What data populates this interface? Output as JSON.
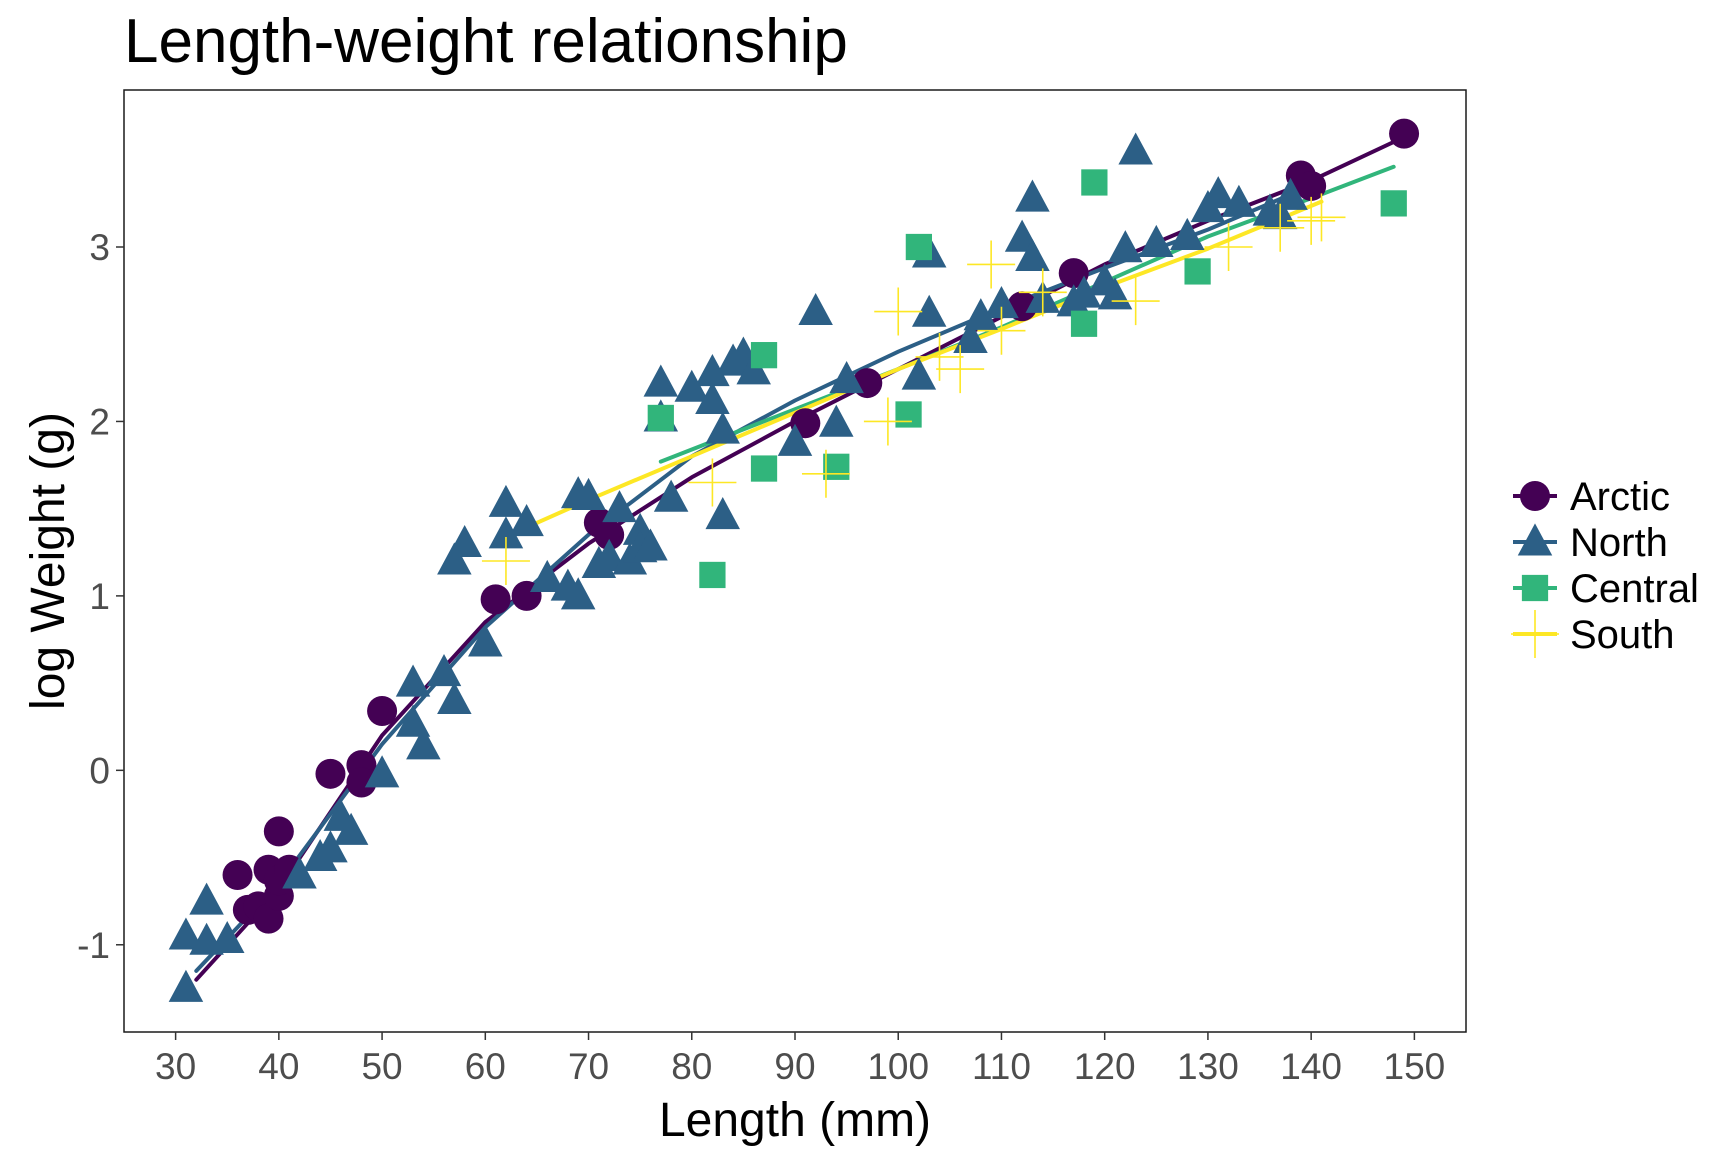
{
  "chart_data": {
    "type": "scatter",
    "title": "Length-weight relationship",
    "xlabel": "Length (mm)",
    "ylabel": "log Weight (g)",
    "xlim": [
      25,
      155
    ],
    "ylim": [
      -1.5,
      3.9
    ],
    "xticks": [
      30,
      40,
      50,
      60,
      70,
      80,
      90,
      100,
      110,
      120,
      130,
      140,
      150
    ],
    "yticks": [
      -1,
      0,
      1,
      2,
      3
    ],
    "xtick_labels": [
      "30",
      "40",
      "50",
      "60",
      "70",
      "80",
      "90",
      "100",
      "110",
      "120",
      "130",
      "140",
      "150"
    ],
    "ytick_labels": [
      "-1",
      "0",
      "1",
      "2",
      "3"
    ],
    "grid": false,
    "legend_position": "right",
    "series": [
      {
        "name": "Arctic",
        "marker": "circle",
        "color": "#440154",
        "points": [
          [
            36,
            -0.6
          ],
          [
            37,
            -0.8
          ],
          [
            38,
            -0.78
          ],
          [
            39,
            -0.57
          ],
          [
            39,
            -0.85
          ],
          [
            40,
            -0.35
          ],
          [
            40,
            -0.72
          ],
          [
            40,
            -0.63
          ],
          [
            41,
            -0.57
          ],
          [
            45,
            -0.02
          ],
          [
            48,
            0.03
          ],
          [
            48,
            -0.07
          ],
          [
            50,
            0.34
          ],
          [
            61,
            0.98
          ],
          [
            64,
            1.0
          ],
          [
            71,
            1.42
          ],
          [
            72,
            1.35
          ],
          [
            91,
            1.99
          ],
          [
            97,
            2.22
          ],
          [
            112,
            2.66
          ],
          [
            117,
            2.85
          ],
          [
            139,
            3.41
          ],
          [
            140,
            3.35
          ],
          [
            149,
            3.65
          ]
        ],
        "trend": [
          [
            32,
            -1.2
          ],
          [
            40,
            -0.68
          ],
          [
            50,
            0.2
          ],
          [
            60,
            0.85
          ],
          [
            70,
            1.3
          ],
          [
            80,
            1.68
          ],
          [
            90,
            2.0
          ],
          [
            100,
            2.3
          ],
          [
            110,
            2.6
          ],
          [
            120,
            2.9
          ],
          [
            130,
            3.15
          ],
          [
            140,
            3.38
          ],
          [
            149,
            3.63
          ]
        ]
      },
      {
        "name": "North",
        "marker": "triangle",
        "color": "#2c5f86",
        "points": [
          [
            31,
            -0.95
          ],
          [
            31,
            -1.25
          ],
          [
            33,
            -0.75
          ],
          [
            33,
            -0.98
          ],
          [
            35,
            -0.97
          ],
          [
            42,
            -0.6
          ],
          [
            44,
            -0.5
          ],
          [
            45,
            -0.45
          ],
          [
            46,
            -0.27
          ],
          [
            47,
            -0.35
          ],
          [
            50,
            -0.02
          ],
          [
            53,
            0.5
          ],
          [
            53,
            0.27
          ],
          [
            54,
            0.14
          ],
          [
            56,
            0.56
          ],
          [
            57,
            0.4
          ],
          [
            57,
            1.2
          ],
          [
            58,
            1.3
          ],
          [
            60,
            0.73
          ],
          [
            62,
            1.35
          ],
          [
            62,
            1.53
          ],
          [
            64,
            1.42
          ],
          [
            66,
            1.1
          ],
          [
            68,
            1.05
          ],
          [
            69,
            1.0
          ],
          [
            69,
            1.58
          ],
          [
            70,
            1.57
          ],
          [
            71,
            1.18
          ],
          [
            72,
            1.22
          ],
          [
            73,
            1.5
          ],
          [
            74,
            1.2
          ],
          [
            75,
            1.37
          ],
          [
            75,
            1.27
          ],
          [
            76,
            1.28
          ],
          [
            77,
            2.02
          ],
          [
            77,
            2.22
          ],
          [
            78,
            1.56
          ],
          [
            80,
            2.19
          ],
          [
            82,
            2.12
          ],
          [
            82,
            2.28
          ],
          [
            83,
            1.95
          ],
          [
            83,
            1.46
          ],
          [
            84,
            2.34
          ],
          [
            85,
            2.38
          ],
          [
            86,
            2.29
          ],
          [
            90,
            1.88
          ],
          [
            92,
            2.63
          ],
          [
            94,
            1.99
          ],
          [
            95,
            2.24
          ],
          [
            102,
            2.26
          ],
          [
            103,
            2.62
          ],
          [
            103,
            2.96
          ],
          [
            107,
            2.47
          ],
          [
            108,
            2.6
          ],
          [
            110,
            2.67
          ],
          [
            112,
            3.05
          ],
          [
            113,
            2.94
          ],
          [
            113,
            3.28
          ],
          [
            114,
            2.7
          ],
          [
            117,
            2.68
          ],
          [
            118,
            2.73
          ],
          [
            120,
            2.8
          ],
          [
            121,
            2.72
          ],
          [
            122,
            2.99
          ],
          [
            123,
            3.55
          ],
          [
            125,
            3.02
          ],
          [
            128,
            3.06
          ],
          [
            130,
            3.22
          ],
          [
            131,
            3.3
          ],
          [
            133,
            3.25
          ],
          [
            136,
            3.2
          ],
          [
            137,
            3.18
          ],
          [
            138,
            3.29
          ]
        ],
        "trend": [
          [
            32,
            -1.15
          ],
          [
            40,
            -0.65
          ],
          [
            50,
            0.15
          ],
          [
            60,
            0.82
          ],
          [
            70,
            1.35
          ],
          [
            80,
            1.8
          ],
          [
            90,
            2.12
          ],
          [
            100,
            2.4
          ],
          [
            110,
            2.65
          ],
          [
            120,
            2.88
          ],
          [
            130,
            3.1
          ],
          [
            140,
            3.35
          ]
        ]
      },
      {
        "name": "Central",
        "marker": "square",
        "color": "#31b57b",
        "points": [
          [
            77,
            2.02
          ],
          [
            82,
            1.12
          ],
          [
            87,
            1.73
          ],
          [
            87,
            2.38
          ],
          [
            94,
            1.74
          ],
          [
            101,
            2.04
          ],
          [
            102,
            3.0
          ],
          [
            118,
            2.56
          ],
          [
            119,
            3.37
          ],
          [
            129,
            2.86
          ],
          [
            148,
            3.25
          ]
        ],
        "trend": [
          [
            77,
            1.77
          ],
          [
            90,
            2.07
          ],
          [
            100,
            2.3
          ],
          [
            110,
            2.54
          ],
          [
            120,
            2.8
          ],
          [
            130,
            3.06
          ],
          [
            140,
            3.28
          ],
          [
            148,
            3.46
          ]
        ]
      },
      {
        "name": "South",
        "marker": "plus",
        "color": "#fde725",
        "points": [
          [
            62,
            1.2
          ],
          [
            82,
            1.65
          ],
          [
            93,
            1.7
          ],
          [
            99,
            2.0
          ],
          [
            100,
            2.63
          ],
          [
            104,
            2.37
          ],
          [
            106,
            2.3
          ],
          [
            109,
            2.9
          ],
          [
            110,
            2.52
          ],
          [
            114,
            2.74
          ],
          [
            123,
            2.69
          ],
          [
            132,
            3.0
          ],
          [
            137,
            3.11
          ],
          [
            140,
            3.15
          ],
          [
            141,
            3.17
          ]
        ],
        "trend": [
          [
            62,
            1.34
          ],
          [
            70,
            1.55
          ],
          [
            80,
            1.8
          ],
          [
            90,
            2.05
          ],
          [
            100,
            2.3
          ],
          [
            110,
            2.53
          ],
          [
            120,
            2.77
          ],
          [
            130,
            2.99
          ],
          [
            141,
            3.26
          ]
        ]
      }
    ]
  }
}
